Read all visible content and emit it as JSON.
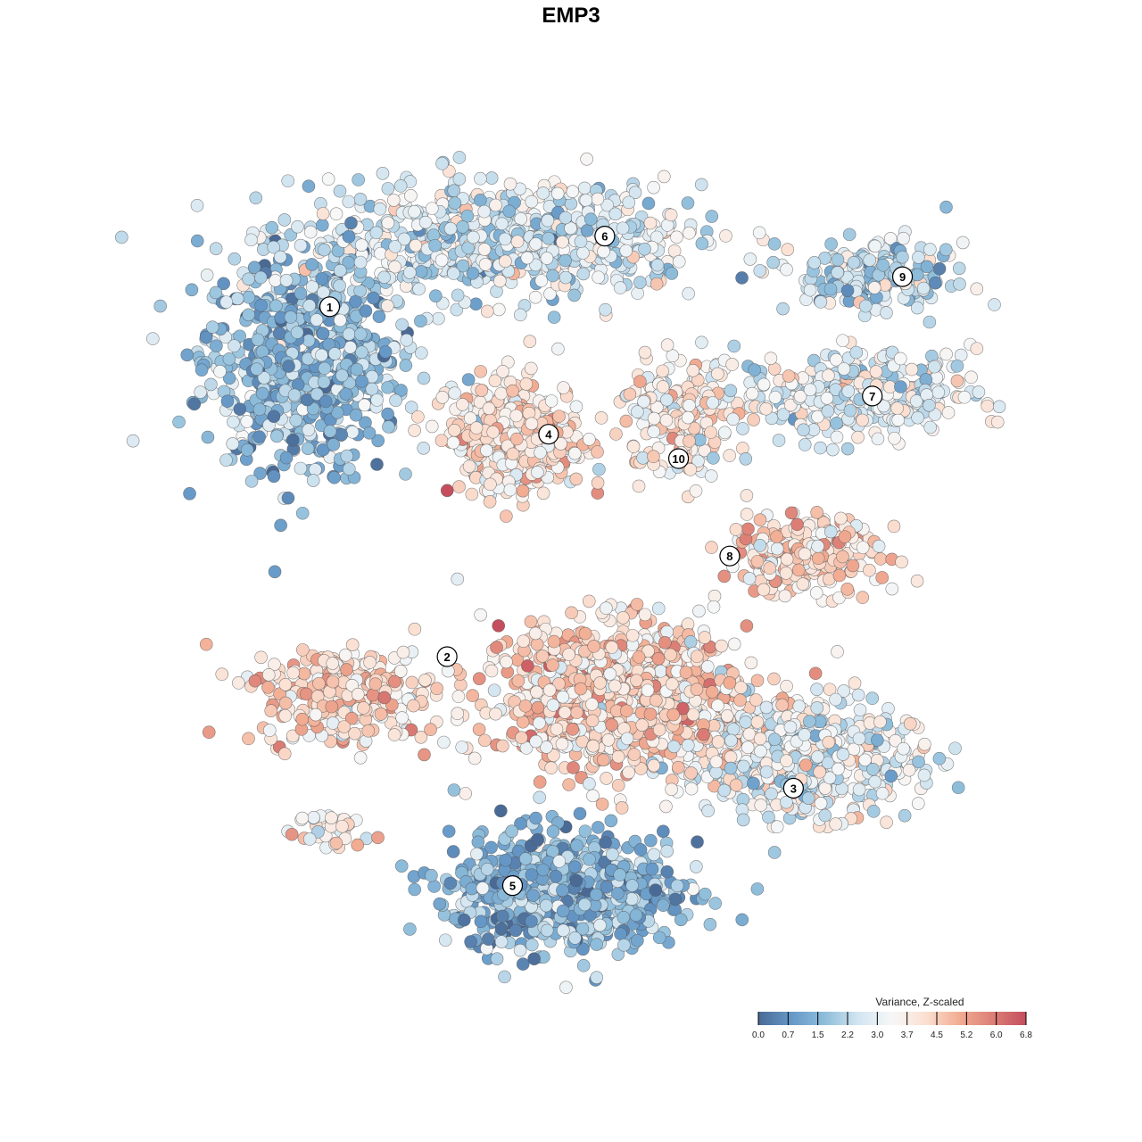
{
  "chart_data": {
    "type": "scatter",
    "title": "EMP3",
    "xlabel": "",
    "ylabel": "",
    "xlim": [
      -50,
      50
    ],
    "ylim": [
      -50,
      50
    ],
    "grid": false,
    "clusters": [
      {
        "id": "1",
        "center": [
          -34,
          25.5
        ],
        "sd": [
          6,
          6.5
        ],
        "n": 700,
        "mean_value": 1.6,
        "label_at": [
          -30.9,
          32.0
        ]
      },
      {
        "id": "6",
        "center": [
          -10.6,
          40
        ],
        "sd": [
          12,
          3.5
        ],
        "n": 700,
        "mean_value": 2.7,
        "label_at": [
          1.9,
          40.7
        ]
      },
      {
        "id": "4",
        "center": [
          -8.5,
          15.9
        ],
        "sd": [
          4,
          3.3
        ],
        "n": 400,
        "mean_value": 4.0,
        "label_at": [
          -4.8,
          16.3
        ]
      },
      {
        "id": "10",
        "center": [
          10.6,
          18.1
        ],
        "sd": [
          3.5,
          3.5
        ],
        "n": 200,
        "mean_value": 3.8,
        "label_at": [
          10.7,
          13.3
        ]
      },
      {
        "id": "9",
        "center": [
          34,
          35.7
        ],
        "sd": [
          4.5,
          2
        ],
        "n": 200,
        "mean_value": 2.3,
        "label_at": [
          37.4,
          35.7
        ]
      },
      {
        "id": "7",
        "center": [
          32,
          21.4
        ],
        "sd": [
          7,
          2.5
        ],
        "n": 350,
        "mean_value": 3.0,
        "label_at": [
          33.8,
          21.0
        ]
      },
      {
        "id": "8",
        "center": [
          25.5,
          1.6
        ],
        "sd": [
          4.5,
          2.5
        ],
        "n": 250,
        "mean_value": 4.2,
        "label_at": [
          16.8,
          1.3
        ]
      },
      {
        "id": "2",
        "center": [
          -28.7,
          -15.9
        ],
        "sd": [
          5,
          3
        ],
        "n": 300,
        "mean_value": 4.3,
        "label_at": [
          -16.9,
          -11.1
        ]
      },
      {
        "id": "",
        "center": [
          3.2,
          -15.9
        ],
        "sd": [
          8,
          4.5
        ],
        "n": 900,
        "mean_value": 4.3,
        "label_at": null
      },
      {
        "id": "3",
        "center": [
          24.5,
          -23.6
        ],
        "sd": [
          7,
          3.5
        ],
        "n": 600,
        "mean_value": 3.1,
        "label_at": [
          24.4,
          -27.3
        ]
      },
      {
        "id": "5",
        "center": [
          -3.2,
          -40
        ],
        "sd": [
          6.5,
          3.5
        ],
        "n": 800,
        "mean_value": 1.5,
        "label_at": [
          -9.1,
          -39.3
        ]
      },
      {
        "id": "",
        "center": [
          -31.9,
          -32.4
        ],
        "sd": [
          3,
          1.5
        ],
        "n": 40,
        "mean_value": 3.5,
        "label_at": null
      }
    ],
    "legend": {
      "title": "Variance, Z-scaled",
      "placement": "bottom-right",
      "range": [
        0,
        6.8
      ],
      "ticks": [
        "0.0",
        "0.7",
        "1.5",
        "2.2",
        "3.0",
        "3.7",
        "4.5",
        "5.2",
        "6.0",
        "6.8"
      ],
      "colors": [
        "#4a6a96",
        "#6699c8",
        "#8fbedb",
        "#d4e6f1",
        "#f7f7f7",
        "#fbe0d2",
        "#f2ad93",
        "#dc7f76",
        "#c44e5e"
      ]
    }
  }
}
